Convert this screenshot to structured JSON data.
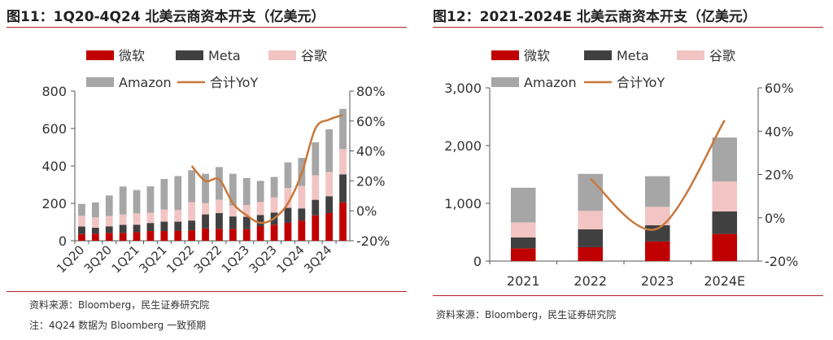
{
  "colors": {
    "microsoft": "#c00000",
    "meta": "#404040",
    "google": "#f2c4c4",
    "amazon": "#a6a6a6",
    "yoy": "#c8783c",
    "accent_rule": "#b22222"
  },
  "left": {
    "title": "图11：1Q20-4Q24 北美云商资本开支（亿美元）",
    "source": "资料来源：Bloomberg，民生证券研究院",
    "note": "注：4Q24 数据为 Bloomberg 一致预期"
  },
  "right": {
    "title": "图12：2021-2024E 北美云商资本开支（亿美元）",
    "source": "资料来源：Bloomberg，民生证券研究院"
  },
  "chart_data": [
    {
      "type": "bar",
      "stacked": true,
      "categories": [
        "1Q20",
        "2Q20",
        "3Q20",
        "4Q20",
        "1Q21",
        "2Q21",
        "3Q21",
        "4Q21",
        "1Q22",
        "2Q22",
        "3Q22",
        "4Q22",
        "1Q23",
        "2Q23",
        "3Q23",
        "4Q23",
        "1Q24",
        "2Q24",
        "3Q24",
        "4Q24"
      ],
      "x_tick_labels": [
        "1Q20",
        "3Q20",
        "1Q21",
        "3Q21",
        "1Q22",
        "3Q22",
        "1Q23",
        "3Q23",
        "1Q24",
        "3Q24"
      ],
      "series": [
        {
          "name": "微软",
          "values": [
            36,
            38,
            42,
            42,
            46,
            52,
            52,
            54,
            56,
            66,
            64,
            64,
            62,
            78,
            86,
            96,
            108,
            136,
            148,
            205
          ]
        },
        {
          "name": "Meta",
          "values": [
            40,
            32,
            35,
            43,
            40,
            43,
            50,
            48,
            52,
            75,
            84,
            66,
            66,
            60,
            65,
            80,
            65,
            83,
            90,
            150
          ]
        },
        {
          "name": "谷歌",
          "values": [
            58,
            55,
            55,
            55,
            60,
            55,
            65,
            63,
            98,
            60,
            71,
            58,
            63,
            69,
            80,
            106,
            120,
            131,
            130,
            135
          ]
        },
        {
          "name": "Amazon",
          "values": [
            63,
            80,
            110,
            150,
            125,
            141,
            163,
            181,
            171,
            157,
            175,
            170,
            144,
            113,
            110,
            137,
            150,
            176,
            228,
            215
          ]
        }
      ],
      "line_series": {
        "name": "合计YoY",
        "axis": "right",
        "start_index": 8,
        "values": [
          30,
          20,
          21,
          5,
          -3,
          -8,
          -5,
          5,
          25,
          55,
          61,
          64
        ]
      },
      "ylim": [
        0,
        800
      ],
      "yticks": [
        "0",
        "200",
        "400",
        "600",
        "800"
      ],
      "y2lim": [
        -20,
        80
      ],
      "y2ticks": [
        "-20%",
        "0%",
        "20%",
        "40%",
        "60%",
        "80%"
      ],
      "legend": [
        "微软",
        "Meta",
        "谷歌",
        "Amazon",
        "合计YoY"
      ],
      "legend_position": "top-left",
      "grid": false
    },
    {
      "type": "bar",
      "stacked": true,
      "categories": [
        "2021",
        "2022",
        "2023",
        "2024E"
      ],
      "series": [
        {
          "name": "微软",
          "values": [
            220,
            240,
            340,
            470
          ]
        },
        {
          "name": "Meta",
          "values": [
            190,
            310,
            280,
            390
          ]
        },
        {
          "name": "谷歌",
          "values": [
            260,
            320,
            320,
            520
          ]
        },
        {
          "name": "Amazon",
          "values": [
            600,
            640,
            530,
            760
          ]
        }
      ],
      "line_series": {
        "name": "合计YoY",
        "axis": "right",
        "values": [
          18,
          -5,
          45
        ]
      },
      "ylim": [
        0,
        3000
      ],
      "yticks": [
        "0",
        "1,000",
        "2,000",
        "3,000"
      ],
      "y2lim": [
        -20,
        60
      ],
      "y2ticks": [
        "-20%",
        "0%",
        "20%",
        "40%",
        "60%"
      ],
      "legend": [
        "微软",
        "Meta",
        "谷歌",
        "Amazon",
        "合计YoY"
      ],
      "legend_position": "top-left",
      "grid": false
    }
  ]
}
